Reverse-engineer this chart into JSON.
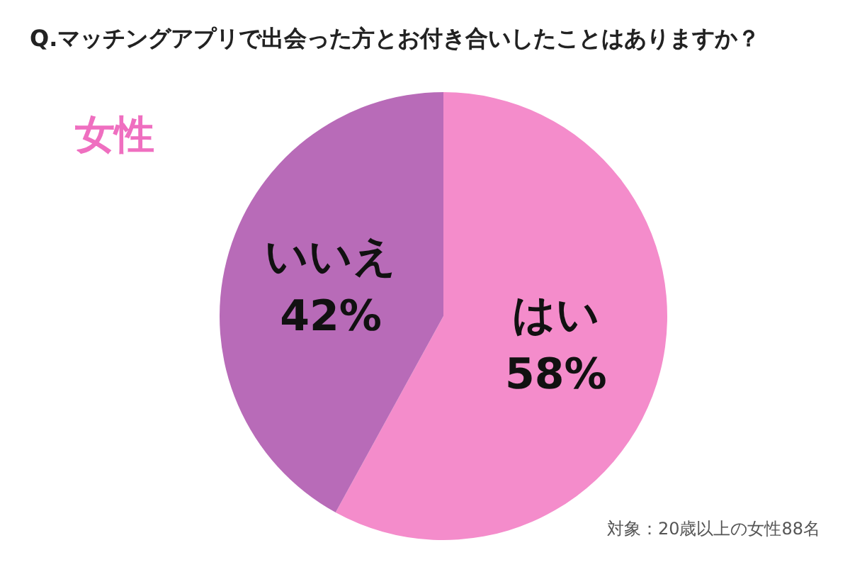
{
  "chart_data": {
    "type": "pie",
    "title": "Q.マッチングアプリで出会った方とお付き合いしたことはありますか？",
    "subtitle": "女性",
    "categories": [
      "はい",
      "いいえ"
    ],
    "values": [
      58,
      42
    ],
    "colors": [
      "#f48ccb",
      "#b86bb8"
    ],
    "value_labels": [
      "58%",
      "42%"
    ],
    "legend": false,
    "annotations": [
      "対象：20歳以上の女性88名"
    ]
  }
}
